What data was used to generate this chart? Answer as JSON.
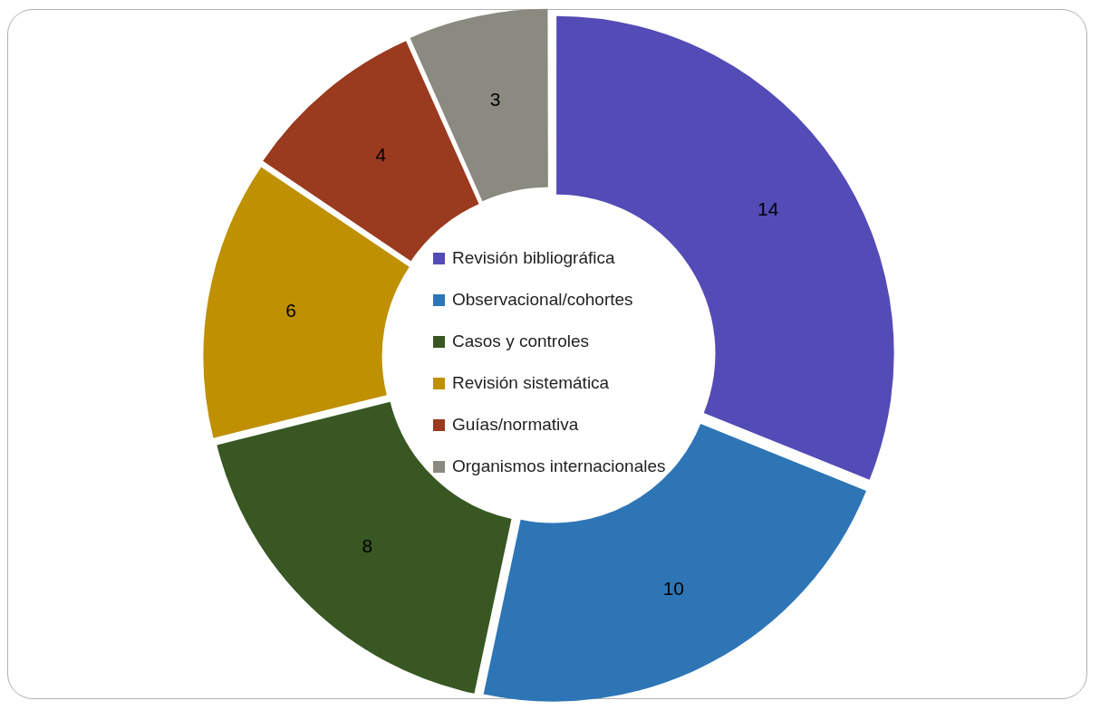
{
  "chart_data": {
    "type": "donut",
    "categories": [
      "Revisión bibliográfica",
      "Observacional/cohortes",
      "Casos y controles",
      "Revisión sistemática",
      "Guías/normativa",
      "Organismos internacionales"
    ],
    "values": [
      14,
      10,
      8,
      6,
      4,
      3
    ],
    "colors": [
      "#534bb6",
      "#2e75b6",
      "#385723",
      "#bf9000",
      "#9a3a1e",
      "#8a8a80"
    ],
    "data_labels": true,
    "legend": "center"
  }
}
